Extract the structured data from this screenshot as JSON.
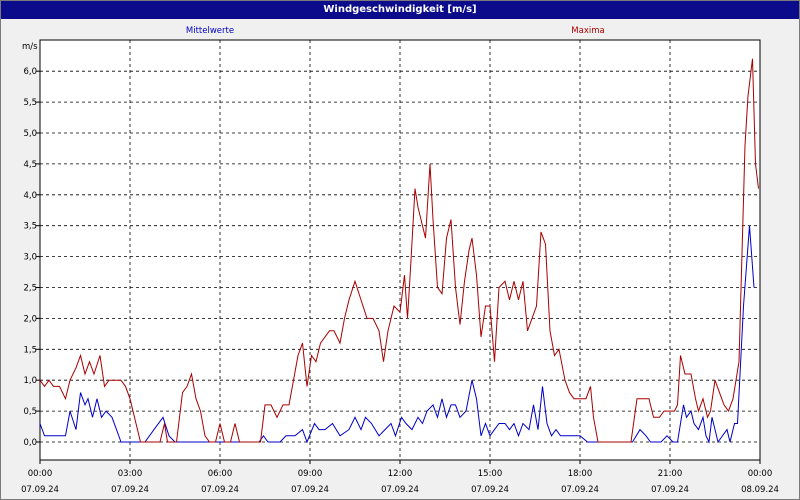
{
  "window": {
    "title": "Windgeschwindigkeit [m/s]"
  },
  "colors": {
    "mean": "#0000c8",
    "max": "#aa0000",
    "title_bg": "#0b0b8c"
  },
  "chart_data": {
    "type": "line",
    "title": "Windgeschwindigkeit [m/s]",
    "ylabel": "m/s",
    "ylim": [
      0,
      6
    ],
    "yticks": [
      "0,0",
      "0,5",
      "1,0",
      "1,5",
      "2,0",
      "2,5",
      "3,0",
      "3,5",
      "4,0",
      "4,5",
      "5,0",
      "5,5",
      "6,0"
    ],
    "xlim": [
      0,
      24
    ],
    "xticks": [
      {
        "time": "00:00",
        "date": "07.09.24"
      },
      {
        "time": "03:00",
        "date": "07.09.24"
      },
      {
        "time": "06:00",
        "date": "07.09.24"
      },
      {
        "time": "09:00",
        "date": "07.09.24"
      },
      {
        "time": "12:00",
        "date": "07.09.24"
      },
      {
        "time": "15:00",
        "date": "07.09.24"
      },
      {
        "time": "18:00",
        "date": "07.09.24"
      },
      {
        "time": "21:00",
        "date": "07.09.24"
      },
      {
        "time": "00:00",
        "date": "08.09.24"
      }
    ],
    "grid": true,
    "series": [
      {
        "name": "Mittelwerte",
        "color": "#0000c8",
        "points": [
          [
            0,
            0.3
          ],
          [
            0.15,
            0.1
          ],
          [
            0.6,
            0.1
          ],
          [
            0.85,
            0.1
          ],
          [
            1.0,
            0.5
          ],
          [
            1.2,
            0.2
          ],
          [
            1.35,
            0.8
          ],
          [
            1.5,
            0.6
          ],
          [
            1.6,
            0.7
          ],
          [
            1.75,
            0.4
          ],
          [
            1.9,
            0.7
          ],
          [
            2.05,
            0.4
          ],
          [
            2.2,
            0.5
          ],
          [
            2.4,
            0.4
          ],
          [
            2.55,
            0.2
          ],
          [
            2.7,
            0
          ],
          [
            3.5,
            0
          ],
          [
            3.8,
            0.2
          ],
          [
            4.1,
            0.4
          ],
          [
            4.3,
            0.1
          ],
          [
            4.5,
            0
          ],
          [
            7.3,
            0
          ],
          [
            7.45,
            0.1
          ],
          [
            7.6,
            0
          ],
          [
            8.0,
            0
          ],
          [
            8.2,
            0.1
          ],
          [
            8.5,
            0.1
          ],
          [
            8.75,
            0.2
          ],
          [
            8.9,
            0
          ],
          [
            9.15,
            0.3
          ],
          [
            9.3,
            0.2
          ],
          [
            9.5,
            0.2
          ],
          [
            9.75,
            0.3
          ],
          [
            10.0,
            0.1
          ],
          [
            10.3,
            0.2
          ],
          [
            10.5,
            0.4
          ],
          [
            10.7,
            0.2
          ],
          [
            10.85,
            0.4
          ],
          [
            11.05,
            0.3
          ],
          [
            11.3,
            0.1
          ],
          [
            11.5,
            0.2
          ],
          [
            11.7,
            0.3
          ],
          [
            11.85,
            0.1
          ],
          [
            12.05,
            0.4
          ],
          [
            12.2,
            0.3
          ],
          [
            12.4,
            0.2
          ],
          [
            12.6,
            0.4
          ],
          [
            12.75,
            0.3
          ],
          [
            12.9,
            0.5
          ],
          [
            13.1,
            0.6
          ],
          [
            13.25,
            0.4
          ],
          [
            13.4,
            0.7
          ],
          [
            13.55,
            0.4
          ],
          [
            13.7,
            0.6
          ],
          [
            13.85,
            0.6
          ],
          [
            14.0,
            0.4
          ],
          [
            14.2,
            0.5
          ],
          [
            14.4,
            1.0
          ],
          [
            14.55,
            0.7
          ],
          [
            14.7,
            0.1
          ],
          [
            14.85,
            0.3
          ],
          [
            15.0,
            0.1
          ],
          [
            15.15,
            0.2
          ],
          [
            15.3,
            0.3
          ],
          [
            15.5,
            0.3
          ],
          [
            15.65,
            0.2
          ],
          [
            15.8,
            0.3
          ],
          [
            15.95,
            0.1
          ],
          [
            16.1,
            0.3
          ],
          [
            16.3,
            0.2
          ],
          [
            16.45,
            0.6
          ],
          [
            16.6,
            0.2
          ],
          [
            16.75,
            0.9
          ],
          [
            16.9,
            0.3
          ],
          [
            17.05,
            0.1
          ],
          [
            17.2,
            0.2
          ],
          [
            17.35,
            0.1
          ],
          [
            18.0,
            0.1
          ],
          [
            18.25,
            0
          ],
          [
            19.75,
            0
          ],
          [
            20.0,
            0.2
          ],
          [
            20.2,
            0.1
          ],
          [
            20.35,
            0
          ],
          [
            20.7,
            0
          ],
          [
            20.9,
            0.1
          ],
          [
            21.1,
            0
          ],
          [
            21.25,
            0
          ],
          [
            21.45,
            0.6
          ],
          [
            21.55,
            0.4
          ],
          [
            21.7,
            0.5
          ],
          [
            21.8,
            0.3
          ],
          [
            21.95,
            0.2
          ],
          [
            22.1,
            0.4
          ],
          [
            22.2,
            0.1
          ],
          [
            22.3,
            0
          ],
          [
            22.4,
            0.4
          ],
          [
            22.6,
            0
          ],
          [
            22.9,
            0.2
          ],
          [
            23.0,
            0
          ],
          [
            23.15,
            0.3
          ],
          [
            23.25,
            0.3
          ],
          [
            23.45,
            2.2
          ],
          [
            23.65,
            3.5
          ],
          [
            23.8,
            2.5
          ]
        ]
      },
      {
        "name": "Maxima",
        "color": "#aa0000",
        "points": [
          [
            0,
            1.0
          ],
          [
            0.15,
            0.9
          ],
          [
            0.3,
            1.0
          ],
          [
            0.45,
            0.9
          ],
          [
            0.65,
            0.9
          ],
          [
            0.85,
            0.7
          ],
          [
            1.0,
            1.0
          ],
          [
            1.2,
            1.2
          ],
          [
            1.35,
            1.4
          ],
          [
            1.5,
            1.1
          ],
          [
            1.65,
            1.3
          ],
          [
            1.8,
            1.1
          ],
          [
            2.0,
            1.4
          ],
          [
            2.15,
            0.9
          ],
          [
            2.3,
            1.0
          ],
          [
            2.45,
            1.0
          ],
          [
            2.7,
            1.0
          ],
          [
            2.85,
            0.9
          ],
          [
            3.0,
            0.7
          ],
          [
            3.2,
            0.3
          ],
          [
            3.35,
            0
          ],
          [
            4.0,
            0
          ],
          [
            4.15,
            0.3
          ],
          [
            4.25,
            0
          ],
          [
            4.55,
            0
          ],
          [
            4.75,
            0.8
          ],
          [
            4.9,
            0.9
          ],
          [
            5.05,
            1.1
          ],
          [
            5.2,
            0.7
          ],
          [
            5.35,
            0.5
          ],
          [
            5.5,
            0.1
          ],
          [
            5.65,
            0
          ],
          [
            5.85,
            0
          ],
          [
            6.0,
            0.3
          ],
          [
            6.15,
            0
          ],
          [
            6.35,
            0
          ],
          [
            6.5,
            0.3
          ],
          [
            6.65,
            0
          ],
          [
            7.35,
            0
          ],
          [
            7.5,
            0.6
          ],
          [
            7.7,
            0.6
          ],
          [
            7.9,
            0.4
          ],
          [
            8.1,
            0.6
          ],
          [
            8.3,
            0.6
          ],
          [
            8.6,
            1.4
          ],
          [
            8.75,
            1.6
          ],
          [
            8.9,
            0.9
          ],
          [
            9.05,
            1.4
          ],
          [
            9.2,
            1.3
          ],
          [
            9.35,
            1.6
          ],
          [
            9.5,
            1.7
          ],
          [
            9.65,
            1.8
          ],
          [
            9.8,
            1.8
          ],
          [
            10.0,
            1.6
          ],
          [
            10.15,
            2.0
          ],
          [
            10.3,
            2.3
          ],
          [
            10.5,
            2.6
          ],
          [
            10.7,
            2.3
          ],
          [
            10.9,
            2.0
          ],
          [
            11.1,
            2.0
          ],
          [
            11.3,
            1.8
          ],
          [
            11.45,
            1.3
          ],
          [
            11.6,
            1.8
          ],
          [
            11.8,
            2.2
          ],
          [
            12.0,
            2.1
          ],
          [
            12.15,
            2.7
          ],
          [
            12.25,
            2.0
          ],
          [
            12.35,
            2.8
          ],
          [
            12.5,
            4.1
          ],
          [
            12.6,
            3.8
          ],
          [
            12.75,
            3.5
          ],
          [
            12.85,
            3.3
          ],
          [
            13.0,
            4.5
          ],
          [
            13.1,
            3.6
          ],
          [
            13.25,
            2.5
          ],
          [
            13.4,
            2.4
          ],
          [
            13.55,
            3.3
          ],
          [
            13.7,
            3.6
          ],
          [
            13.85,
            2.5
          ],
          [
            14.0,
            1.9
          ],
          [
            14.15,
            2.6
          ],
          [
            14.3,
            3.1
          ],
          [
            14.4,
            3.3
          ],
          [
            14.55,
            2.7
          ],
          [
            14.7,
            1.7
          ],
          [
            14.85,
            2.2
          ],
          [
            15.0,
            2.2
          ],
          [
            15.15,
            1.3
          ],
          [
            15.3,
            2.5
          ],
          [
            15.5,
            2.6
          ],
          [
            15.65,
            2.3
          ],
          [
            15.8,
            2.6
          ],
          [
            15.95,
            2.3
          ],
          [
            16.1,
            2.6
          ],
          [
            16.25,
            1.8
          ],
          [
            16.4,
            2.0
          ],
          [
            16.55,
            2.2
          ],
          [
            16.7,
            3.4
          ],
          [
            16.85,
            3.2
          ],
          [
            17.0,
            1.8
          ],
          [
            17.15,
            1.4
          ],
          [
            17.3,
            1.5
          ],
          [
            17.5,
            1.0
          ],
          [
            17.65,
            0.8
          ],
          [
            17.8,
            0.7
          ],
          [
            18.0,
            0.7
          ],
          [
            18.2,
            0.7
          ],
          [
            18.35,
            0.9
          ],
          [
            18.45,
            0.4
          ],
          [
            18.6,
            0
          ],
          [
            19.7,
            0
          ],
          [
            19.9,
            0.7
          ],
          [
            20.15,
            0.7
          ],
          [
            20.3,
            0.7
          ],
          [
            20.45,
            0.4
          ],
          [
            20.65,
            0.4
          ],
          [
            20.8,
            0.5
          ],
          [
            20.95,
            0.5
          ],
          [
            21.15,
            0.5
          ],
          [
            21.25,
            0.6
          ],
          [
            21.35,
            1.4
          ],
          [
            21.5,
            1.1
          ],
          [
            21.7,
            1.1
          ],
          [
            21.85,
            0.7
          ],
          [
            21.95,
            0.5
          ],
          [
            22.1,
            0.7
          ],
          [
            22.25,
            0.4
          ],
          [
            22.35,
            0.5
          ],
          [
            22.5,
            1.0
          ],
          [
            22.65,
            0.8
          ],
          [
            22.8,
            0.6
          ],
          [
            22.95,
            0.5
          ],
          [
            23.1,
            0.7
          ],
          [
            23.3,
            1.3
          ],
          [
            23.5,
            4.8
          ],
          [
            23.6,
            5.6
          ],
          [
            23.75,
            6.2
          ],
          [
            23.85,
            4.5
          ],
          [
            23.95,
            4.1
          ]
        ]
      }
    ]
  }
}
